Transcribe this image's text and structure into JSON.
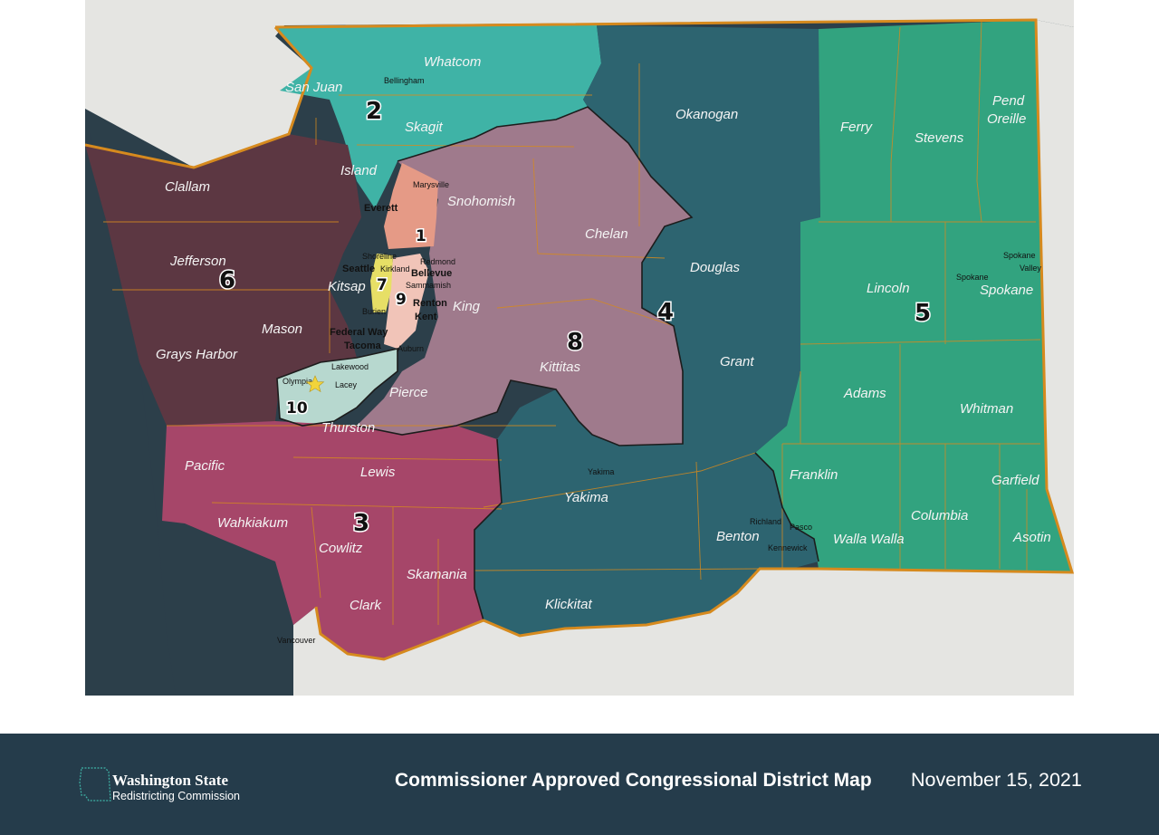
{
  "map": {
    "colors": {
      "water": "#2c3f4a",
      "land_outside": "#e5e5e2",
      "state_border": "#d68a1e",
      "county_line": "#d68a1e",
      "d1": "#e59a86",
      "d2": "#3fb3a6",
      "d3": "#a64669",
      "d4": "#2d6470",
      "d5": "#32a37f",
      "d6": "#5c3742",
      "d7": "#e7df66",
      "d8": "#9f7a8c",
      "d9": "#f1c4b8",
      "d10": "#b7d8cf"
    },
    "districts": [
      "1",
      "2",
      "3",
      "4",
      "5",
      "6",
      "7",
      "8",
      "9",
      "10"
    ],
    "counties": [
      "Whatcom",
      "San Juan",
      "Skagit",
      "Okanogan",
      "Ferry",
      "Stevens",
      "Pend Oreille",
      "Island",
      "Clallam",
      "Snohomish",
      "Chelan",
      "Jefferson",
      "Douglas",
      "Lincoln",
      "Spokane",
      "Kitsap",
      "King",
      "Mason",
      "Grays Harbor",
      "Kittitas",
      "Grant",
      "Pierce",
      "Adams",
      "Whitman",
      "Thurston",
      "Pacific",
      "Lewis",
      "Franklin",
      "Garfield",
      "Yakima",
      "Wahkiakum",
      "Cowlitz",
      "Columbia",
      "Benton",
      "Walla Walla",
      "Asotin",
      "Skamania",
      "Clark",
      "Klickitat"
    ],
    "cities": {
      "bellingham": "Bellingham",
      "marysville": "Marysville",
      "everett": "Everett",
      "shoreline": "Shoreline",
      "seattle": "Seattle",
      "kirkland": "Kirkland",
      "redmond": "Redmond",
      "bellevue": "Bellevue",
      "sammamish": "Sammamish",
      "burien": "Burien",
      "renton": "Renton",
      "kent": "Kent",
      "federal_way": "Federal Way",
      "tacoma": "Tacoma",
      "auburn": "Auburn",
      "lakewood": "Lakewood",
      "olympia": "Olympia",
      "lacey": "Lacey",
      "spokane_valley": "Spokane Valley",
      "spokane": "Spokane",
      "yakima": "Yakima",
      "richland": "Richland",
      "pasco": "Pasco",
      "kennewick": "Kennewick",
      "vancouver": "Vancouver"
    },
    "capital_icon": "star-icon"
  },
  "footer": {
    "org_name": "Washington State",
    "org_sub": "Redistricting Commission",
    "title": "Commissioner Approved Congressional District Map",
    "date": "November 15, 2021"
  }
}
